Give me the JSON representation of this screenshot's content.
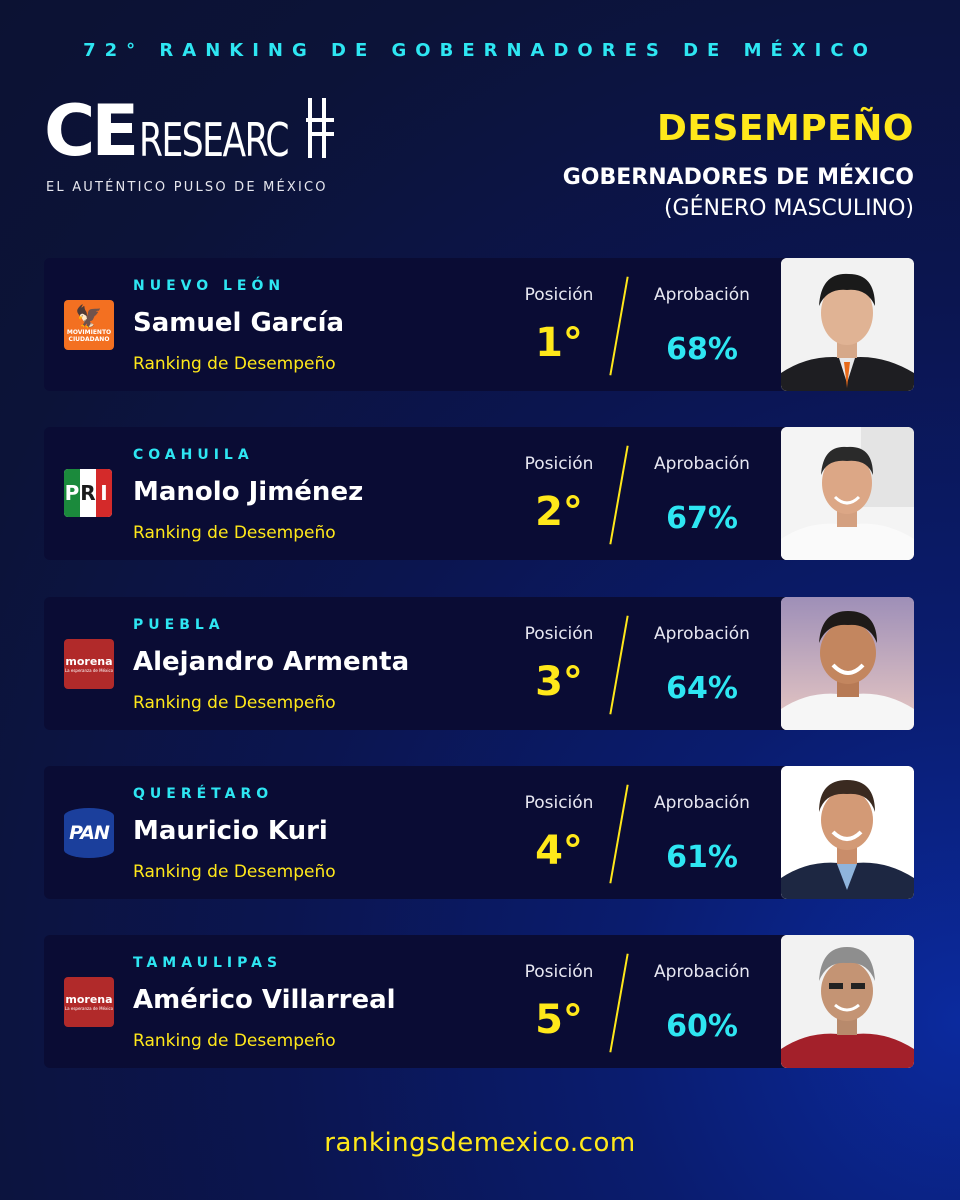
{
  "banner": "72° RANKING DE GOBERNADORES DE MÉXICO",
  "brand": {
    "ce": "CE",
    "research": "RESEARC",
    "tagline": "EL AUTÉNTICO PULSO DE MÉXICO"
  },
  "header": {
    "title": "DESEMPEÑO",
    "subtitle": "GOBERNADORES DE MÉXICO",
    "subtitle2": "(GÉNERO MASCULINO)"
  },
  "labels": {
    "position": "Posición",
    "approval": "Aprobación",
    "ranking": "Ranking de Desempeño"
  },
  "governors": [
    {
      "state": "NUEVO LEÓN",
      "name": "Samuel García",
      "position": "1°",
      "approval": "68%",
      "party": "Movimiento Ciudadano",
      "party_icon": "movimiento-ciudadano-logo"
    },
    {
      "state": "COAHUILA",
      "name": "Manolo Jiménez",
      "position": "2°",
      "approval": "67%",
      "party": "PRI",
      "party_icon": "pri-logo"
    },
    {
      "state": "PUEBLA",
      "name": "Alejandro Armenta",
      "position": "3°",
      "approval": "64%",
      "party": "morena",
      "party_icon": "morena-logo"
    },
    {
      "state": "QUERÉTARO",
      "name": "Mauricio Kuri",
      "position": "4°",
      "approval": "61%",
      "party": "PAN",
      "party_icon": "pan-logo"
    },
    {
      "state": "TAMAULIPAS",
      "name": "Américo Villarreal",
      "position": "5°",
      "approval": "60%",
      "party": "morena",
      "party_icon": "morena-logo"
    }
  ],
  "party_text": {
    "mc": "MOVIMIENTO CIUDADANO",
    "pri": [
      "P",
      "R",
      "I"
    ],
    "morena": "morena",
    "morena_sub": "La esperanza de México",
    "pan": "PAN"
  },
  "footer": "rankingsdemexico.com",
  "colors": {
    "accent_yellow": "#ffe81a",
    "accent_cyan": "#2ee6f2",
    "card_bg": "#0a0c34"
  }
}
